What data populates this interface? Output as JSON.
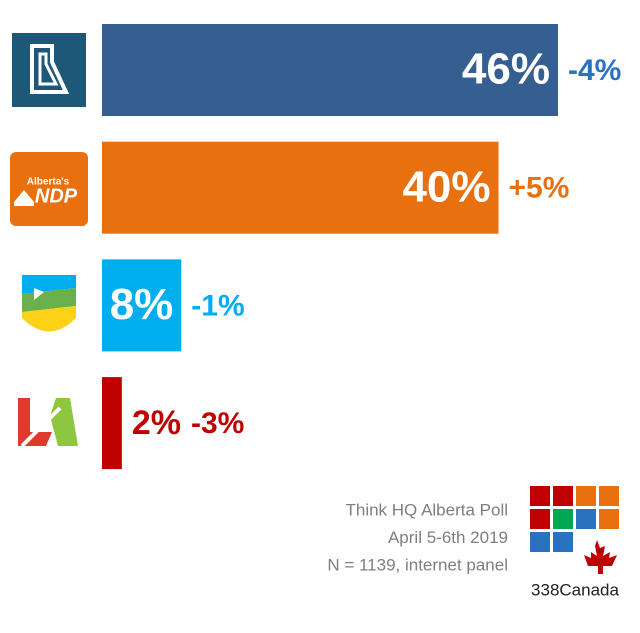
{
  "chart_data": {
    "type": "bar",
    "orientation": "horizontal",
    "categories": [
      null,
      null,
      null,
      null
    ],
    "values": [
      46,
      40,
      8,
      2
    ],
    "value_labels": [
      "46%",
      "40%",
      "8%",
      "2%"
    ],
    "colors": [
      "#355f91",
      "#e8700f",
      "#00aeef",
      "#c00000"
    ],
    "changes": [
      -4,
      5,
      -1,
      -3
    ],
    "change_labels": [
      "-4%",
      "+5%",
      "-1%",
      "-3%"
    ],
    "change_colors": [
      "#2a72c0",
      "#e8700f",
      "#00aeef",
      "#c00000"
    ]
  },
  "logos": {
    "ndp_small": "Alberta's",
    "ndp": "NDP"
  },
  "source": {
    "lines": [
      "Think HQ Alberta Poll",
      "April 5-6th 2019",
      "N = 1139, internet panel"
    ],
    "brand": "338Canada"
  }
}
